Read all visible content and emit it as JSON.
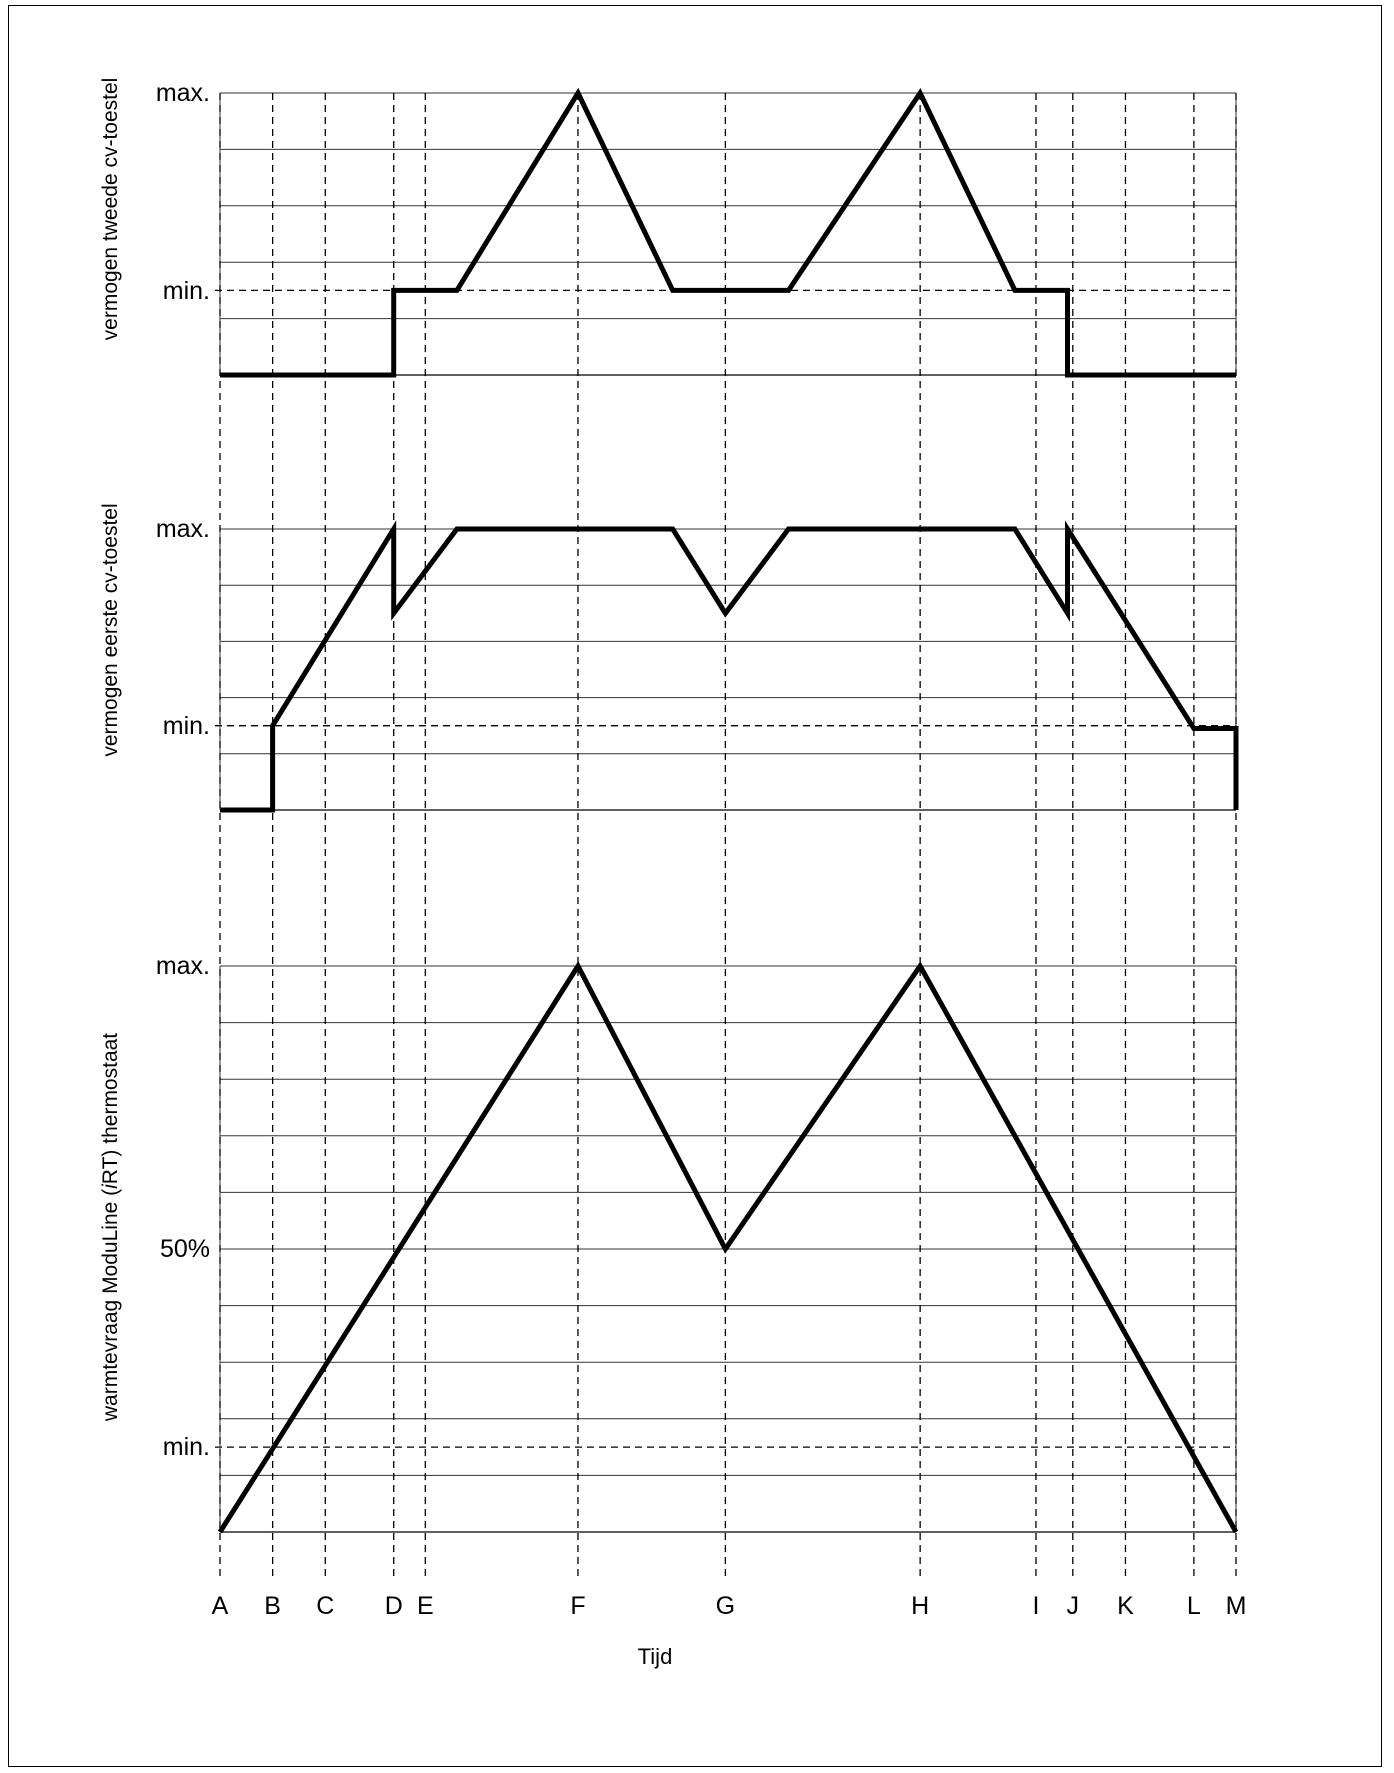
{
  "chart_data": {
    "type": "line",
    "xlabel": "Tijd",
    "x_markers": [
      "A",
      "B",
      "C",
      "D",
      "E",
      "F",
      "G",
      "H",
      "I",
      "J",
      "K",
      "L",
      "M"
    ],
    "x_marker_positions": {
      "A": 0,
      "B": 1,
      "C": 2,
      "D": 3.3,
      "E": 3.9,
      "F": 6.8,
      "G": 9.6,
      "H": 13.3,
      "I": 15.5,
      "J": 16.2,
      "K": 17.2,
      "L": 18.5,
      "M": 19.3
    },
    "panels": [
      {
        "key": "top",
        "ylabel": "vermogen tweede cv-toestel",
        "ytick_labels": {
          "max": "max.",
          "min": "min."
        },
        "ylim": [
          0,
          100
        ],
        "min_level": 30,
        "series": {
          "x": [
            0,
            3.3,
            3.3,
            4.5,
            6.8,
            8.6,
            10.8,
            13.3,
            15.1,
            16.1,
            16.1,
            19.3
          ],
          "y": [
            0,
            0,
            30,
            30,
            100,
            30,
            30,
            100,
            30,
            30,
            0,
            0
          ]
        }
      },
      {
        "key": "mid",
        "ylabel": "vermogen eerste cv-toestel",
        "ytick_labels": {
          "max": "max.",
          "min": "min."
        },
        "ylim": [
          0,
          100
        ],
        "min_level": 30,
        "series": {
          "x": [
            0,
            1,
            1,
            3.3,
            3.3,
            4.5,
            8.6,
            9.6,
            10.8,
            15.1,
            16.1,
            16.1,
            18.5,
            19.3,
            19.3
          ],
          "y": [
            0,
            0,
            30,
            100,
            70,
            100,
            100,
            70,
            100,
            100,
            70,
            100,
            29,
            29,
            0
          ]
        }
      },
      {
        "key": "bottom",
        "ylabel": "warmtevraag ModuLine (iRT) thermostaat",
        "ytick_labels": {
          "max": "max.",
          "mid": "50%",
          "min": "min."
        },
        "ylim": [
          0,
          100
        ],
        "min_level": 15,
        "mid_level": 50,
        "series": {
          "x": [
            0,
            6.8,
            9.6,
            13.3,
            19.3
          ],
          "y": [
            0,
            100,
            50,
            100,
            0
          ]
        }
      }
    ]
  }
}
